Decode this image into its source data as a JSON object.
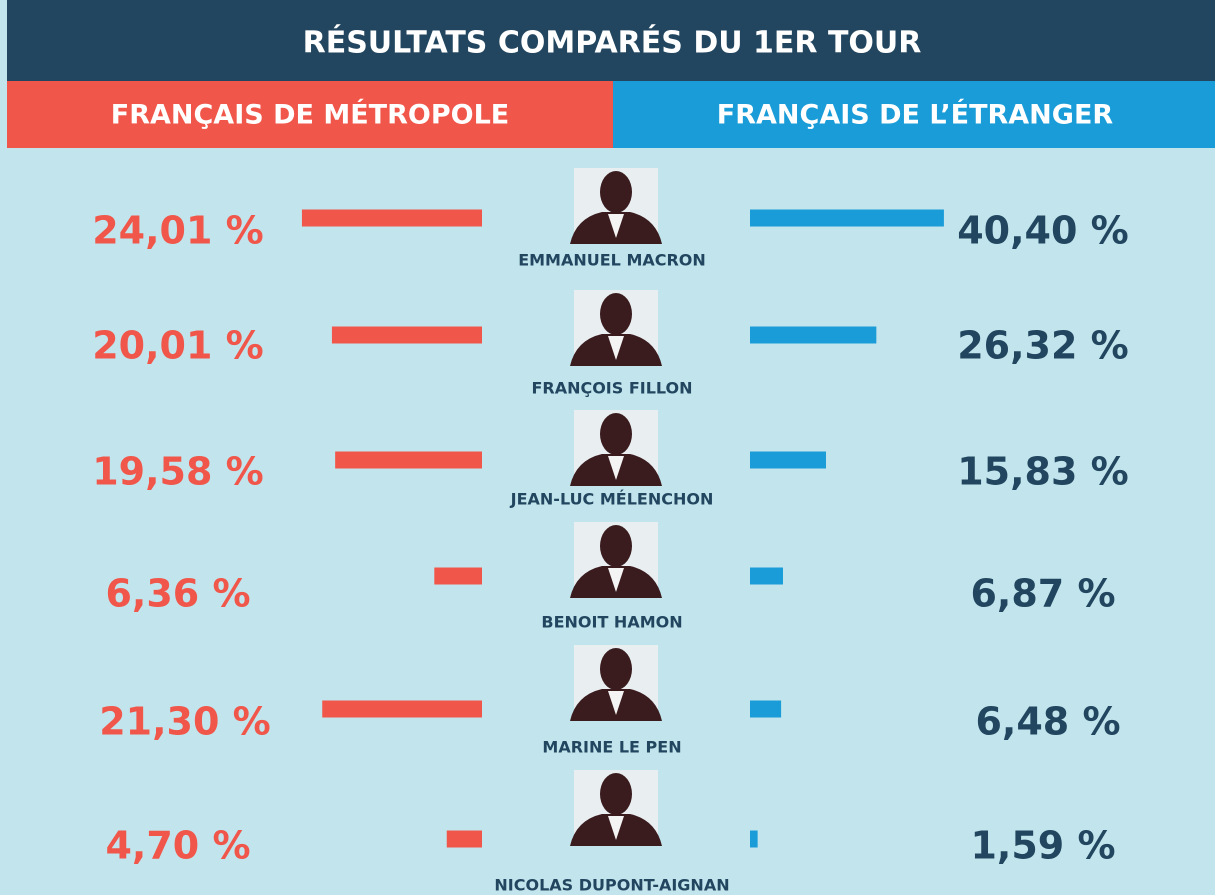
{
  "chart_data": {
    "type": "butterfly-bar",
    "title": "RÉSULTATS COMPARÉS DU 1ER TOUR",
    "categories": [
      "EMMANUEL MACRON",
      "FRANÇOIS FILLON",
      "JEAN-LUC MÉLENCHON",
      "BENOIT HAMON",
      "MARINE LE PEN",
      "NICOLAS DUPONT-AIGNAN"
    ],
    "series": [
      {
        "name": "FRANÇAIS DE MÉTROPOLE",
        "color": "#f0574a",
        "values": [
          24.01,
          20.01,
          19.58,
          6.36,
          21.3,
          4.7
        ],
        "value_labels": [
          "24,01 %",
          "20,01 %",
          "19,58 %",
          "6,36 %",
          "21,30 %",
          "4,70 %"
        ]
      },
      {
        "name": "FRANÇAIS DE L’ÉTRANGER",
        "color": "#1a9cd8",
        "values": [
          40.4,
          26.32,
          15.83,
          6.87,
          6.48,
          1.59
        ],
        "value_labels": [
          "40,40 %",
          "26,32 %",
          "15,83 %",
          "6,87 %",
          "6,48 %",
          "1,59 %"
        ]
      }
    ]
  }
}
